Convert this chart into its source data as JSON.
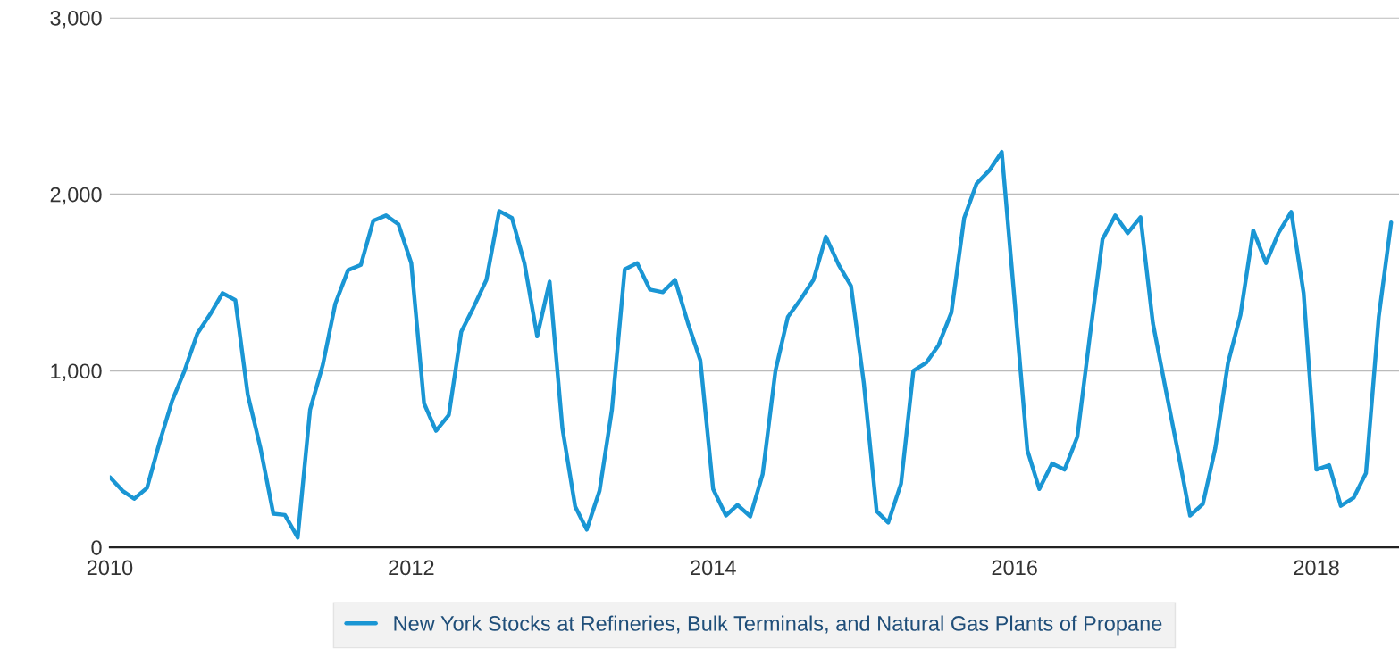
{
  "chart_data": {
    "type": "line",
    "x": [
      "2010-01",
      "2010-02",
      "2010-03",
      "2010-04",
      "2010-05",
      "2010-06",
      "2010-07",
      "2010-08",
      "2010-09",
      "2010-10",
      "2010-11",
      "2010-12",
      "2011-01",
      "2011-02",
      "2011-03",
      "2011-04",
      "2011-05",
      "2011-06",
      "2011-07",
      "2011-08",
      "2011-09",
      "2011-10",
      "2011-11",
      "2011-12",
      "2012-01",
      "2012-02",
      "2012-03",
      "2012-04",
      "2012-05",
      "2012-06",
      "2012-07",
      "2012-08",
      "2012-09",
      "2012-10",
      "2012-11",
      "2012-12",
      "2013-01",
      "2013-02",
      "2013-03",
      "2013-04",
      "2013-05",
      "2013-06",
      "2013-07",
      "2013-08",
      "2013-09",
      "2013-10",
      "2013-11",
      "2013-12",
      "2014-01",
      "2014-02",
      "2014-03",
      "2014-04",
      "2014-05",
      "2014-06",
      "2014-07",
      "2014-08",
      "2014-09",
      "2014-10",
      "2014-11",
      "2014-12",
      "2015-01",
      "2015-02",
      "2015-03",
      "2015-04",
      "2015-05",
      "2015-06",
      "2015-07",
      "2015-08",
      "2015-09",
      "2015-10",
      "2015-11",
      "2015-12",
      "2016-01",
      "2016-02",
      "2016-03",
      "2016-04",
      "2016-05",
      "2016-06",
      "2016-07",
      "2016-08",
      "2016-09",
      "2016-10",
      "2016-11",
      "2016-12",
      "2017-01",
      "2017-02",
      "2017-03",
      "2017-04",
      "2017-05",
      "2017-06",
      "2017-07",
      "2017-08",
      "2017-09",
      "2017-10",
      "2017-11",
      "2017-12",
      "2018-01",
      "2018-02",
      "2018-03",
      "2018-04",
      "2018-05",
      "2018-06",
      "2018-07"
    ],
    "series": [
      {
        "name": "New York Stocks at Refineries, Bulk Terminals, and Natural Gas Plants of Propane",
        "color": "#1a96d4",
        "values": [
          397,
          320,
          275,
          336,
          590,
          830,
          1000,
          1210,
          1320,
          1440,
          1400,
          865,
          560,
          190,
          183,
          55,
          780,
          1035,
          1380,
          1570,
          1600,
          1850,
          1880,
          1830,
          1610,
          815,
          660,
          750,
          1220,
          1365,
          1515,
          1905,
          1865,
          1610,
          1195,
          1505,
          675,
          230,
          100,
          320,
          780,
          1575,
          1610,
          1460,
          1445,
          1515,
          1270,
          1060,
          330,
          180,
          240,
          175,
          415,
          1000,
          1305,
          1405,
          1515,
          1760,
          1600,
          1480,
          930,
          205,
          140,
          360,
          1000,
          1045,
          1145,
          1330,
          1865,
          2060,
          2135,
          2240,
          1400,
          550,
          330,
          475,
          440,
          625,
          1190,
          1745,
          1880,
          1780,
          1870,
          1270,
          895,
          525,
          180,
          245,
          560,
          1045,
          1315,
          1795,
          1610,
          1780,
          1900,
          1440,
          440,
          465,
          235,
          280,
          420,
          1305,
          1840
        ]
      }
    ],
    "xlim": [
      "2010-01-01",
      "2018-07-20"
    ],
    "xticks": [
      {
        "value": "2010",
        "label": "2010"
      },
      {
        "value": "2012",
        "label": "2012"
      },
      {
        "value": "2014",
        "label": "2014"
      },
      {
        "value": "2016",
        "label": "2016"
      },
      {
        "value": "2018",
        "label": "2018"
      }
    ],
    "ylim": [
      0,
      3000
    ],
    "yticks": [
      0,
      {
        "value": 1000,
        "label": "1,000"
      },
      {
        "value": 2000,
        "label": "2,000"
      },
      {
        "value": 3000,
        "label": "3,000"
      }
    ],
    "grid": "y",
    "legend": "bottom",
    "line_style": "solid",
    "marker": "none"
  }
}
